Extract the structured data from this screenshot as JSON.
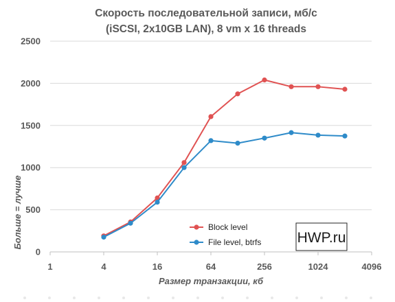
{
  "chart_data": {
    "type": "line",
    "title_lines": [
      "Скорость последовательной записи, мб/с",
      "(iSCSI, 2x10GB LAN), 8 vm x 16 threads"
    ],
    "xlabel": "Размер транзакции, кб",
    "ylabel": "Больше = лучше",
    "x_scale": "log2",
    "xlim": [
      1,
      4096
    ],
    "ylim": [
      0,
      2500
    ],
    "x_ticks": [
      1,
      4,
      16,
      64,
      256,
      1024,
      4096
    ],
    "y_ticks": [
      0,
      500,
      1000,
      1500,
      2000,
      2500
    ],
    "grid": "horizontal",
    "legend_position": "bottom-center",
    "x": [
      4,
      8,
      16,
      32,
      64,
      128,
      256,
      512,
      1024,
      2048
    ],
    "series": [
      {
        "name": "Block level",
        "color": "#e05252",
        "values": [
          190,
          355,
          640,
          1060,
          1605,
          1875,
          2040,
          1960,
          1960,
          1930
        ]
      },
      {
        "name": "File level, btrfs",
        "color": "#2e8bc9",
        "values": [
          175,
          340,
          590,
          1000,
          1320,
          1290,
          1350,
          1415,
          1385,
          1375
        ]
      }
    ]
  },
  "watermark": {
    "text": "HWP.ru"
  },
  "colors": {
    "text": "#595959",
    "grid": "#d9d9d9",
    "dots": "#e8e8e8"
  }
}
